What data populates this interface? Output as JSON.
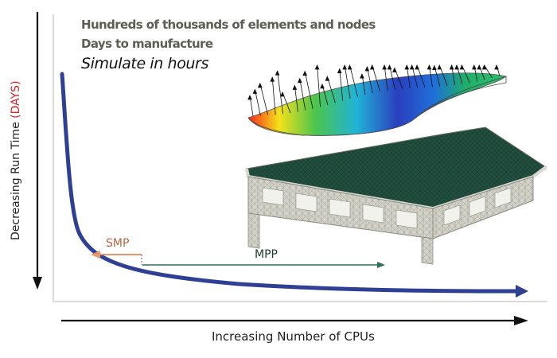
{
  "headings": {
    "line1": "Hundreds of thousands of elements and nodes",
    "line2": "Days to manufacture",
    "line3": "Simulate in hours"
  },
  "axes": {
    "y_label_main": "Decreasing  Run Time ",
    "y_label_unit": "(DAYS)",
    "x_label": "Increasing Number of CPUs"
  },
  "regions": {
    "smp": "SMP",
    "mpp": "MPP"
  },
  "colors": {
    "curve": "#2e3f94",
    "smp_arrow": "#e8956b",
    "mpp_arrow": "#2b6e5a",
    "unit_red": "#d9232a",
    "bridge_deck": "#1f4a3a",
    "bridge_truss": "#c9c9c0"
  },
  "icons": {
    "bridge_model": "bridge-mesh-illustration",
    "stress_plot": "stress-contour-illustration"
  }
}
